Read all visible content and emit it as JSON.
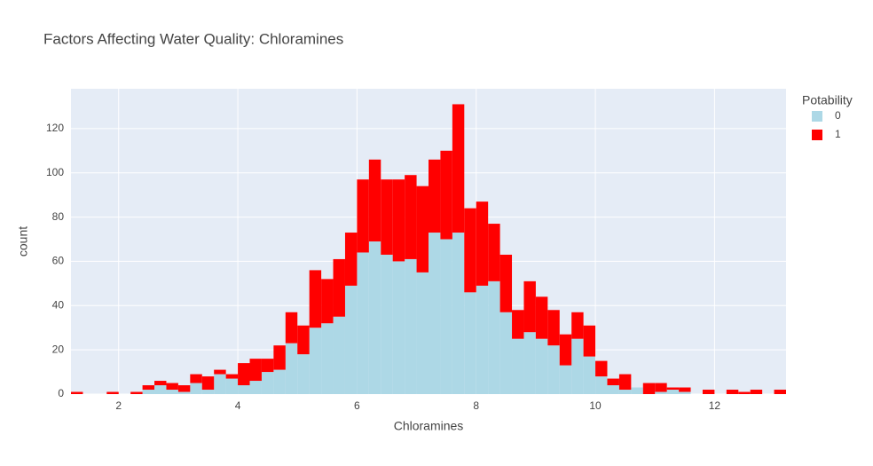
{
  "chart_data": {
    "type": "histogram",
    "title": "Factors Affecting Water Quality: Chloramines",
    "x_label": "Chloramines",
    "y_label": "count",
    "legend_title": "Potability",
    "legend_position": "right",
    "barmode": "stack",
    "grid": true,
    "bins": [
      1.2,
      1.4,
      1.6,
      1.8,
      2.0,
      2.2,
      2.4,
      2.6,
      2.8,
      3.0,
      3.2,
      3.4,
      3.6,
      3.8,
      4.0,
      4.2,
      4.4,
      4.6,
      4.8,
      5.0,
      5.2,
      5.4,
      5.6,
      5.8,
      6.0,
      6.2,
      6.4,
      6.6,
      6.8,
      7.0,
      7.2,
      7.4,
      7.6,
      7.8,
      8.0,
      8.2,
      8.4,
      8.6,
      8.8,
      9.0,
      9.2,
      9.4,
      9.6,
      9.8,
      10.0,
      10.2,
      10.4,
      10.6,
      10.8,
      11.0,
      11.2,
      11.4,
      11.6,
      11.8,
      12.0,
      12.2,
      12.4,
      12.6,
      12.8,
      13.0,
      13.2
    ],
    "series": [
      {
        "name": "0",
        "color": "#add8e6",
        "values": [
          0,
          0,
          0,
          0,
          0,
          0,
          2,
          4,
          2,
          1,
          5,
          2,
          9,
          7,
          4,
          6,
          10,
          11,
          23,
          18,
          30,
          32,
          35,
          49,
          64,
          69,
          63,
          60,
          61,
          55,
          73,
          70,
          73,
          46,
          49,
          51,
          37,
          25,
          28,
          25,
          22,
          13,
          25,
          17,
          8,
          4,
          2,
          3,
          0,
          1,
          2,
          1,
          0,
          0,
          0,
          0,
          0,
          0,
          0,
          0
        ]
      },
      {
        "name": "1",
        "color": "#ff0000",
        "values": [
          1,
          0,
          0,
          1,
          0,
          1,
          2,
          2,
          3,
          3,
          4,
          6,
          2,
          2,
          10,
          10,
          6,
          11,
          14,
          13,
          26,
          20,
          26,
          24,
          33,
          37,
          34,
          37,
          38,
          39,
          33,
          40,
          58,
          38,
          38,
          26,
          26,
          13,
          23,
          19,
          16,
          14,
          12,
          14,
          7,
          3,
          7,
          0,
          5,
          4,
          1,
          2,
          0,
          2,
          0,
          2,
          1,
          2,
          0,
          2
        ]
      }
    ],
    "xlim": [
      1.2,
      13.2
    ],
    "xticks": [
      2,
      4,
      6,
      8,
      10,
      12
    ],
    "ylim": [
      0,
      138
    ],
    "yticks": [
      0,
      20,
      40,
      60,
      80,
      100,
      120
    ]
  }
}
